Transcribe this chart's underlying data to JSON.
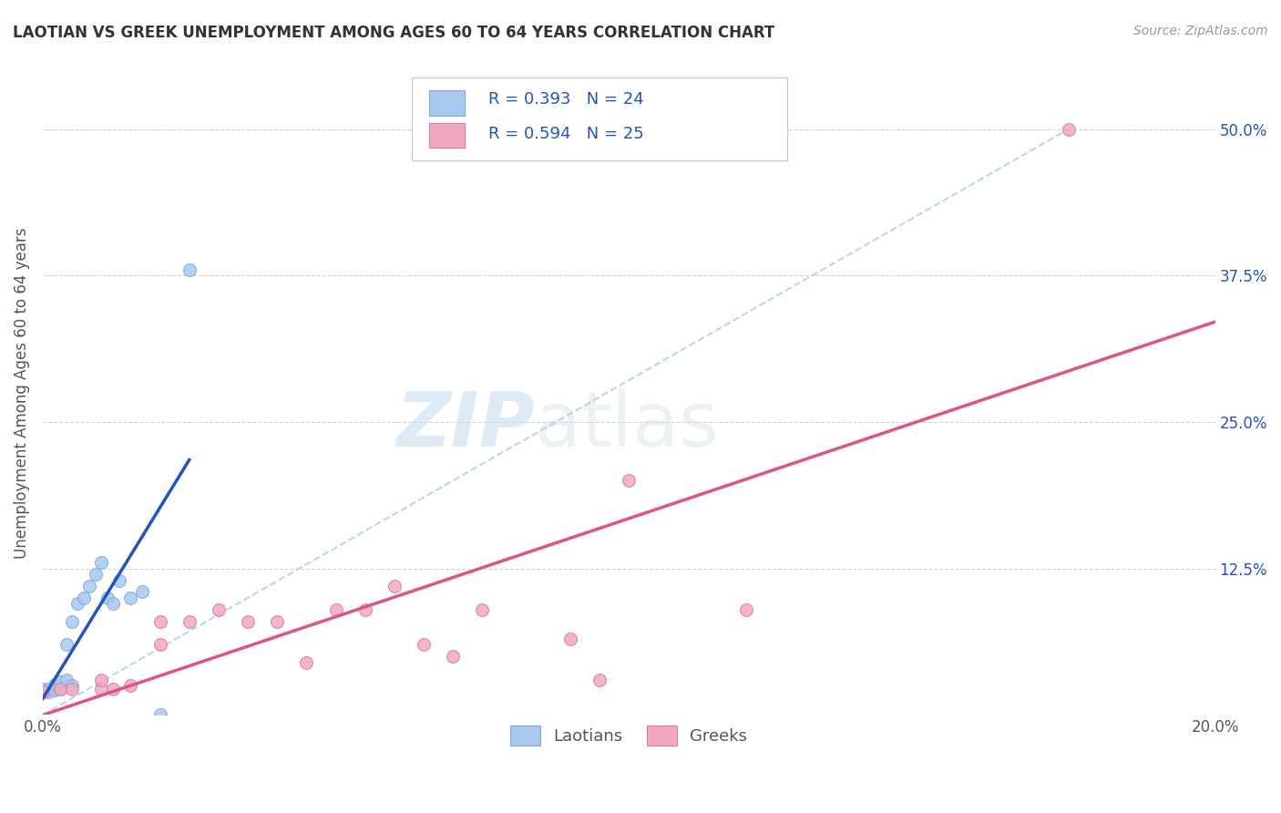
{
  "title": "LAOTIAN VS GREEK UNEMPLOYMENT AMONG AGES 60 TO 64 YEARS CORRELATION CHART",
  "source": "Source: ZipAtlas.com",
  "ylabel": "Unemployment Among Ages 60 to 64 years",
  "xlim": [
    0.0,
    0.2
  ],
  "ylim": [
    0.0,
    0.55
  ],
  "x_ticks": [
    0.0,
    0.05,
    0.1,
    0.15,
    0.2
  ],
  "y_ticks": [
    0.0,
    0.125,
    0.25,
    0.375,
    0.5
  ],
  "y_tick_labels": [
    "",
    "12.5%",
    "25.0%",
    "37.5%",
    "50.0%"
  ],
  "grid_color": "#c8c8c8",
  "background_color": "#ffffff",
  "watermark_zip": "ZIP",
  "watermark_atlas": "atlas",
  "laotian_color": "#a8c8f0",
  "laotian_edge_color": "#7aaadd",
  "greek_color": "#f0a8c0",
  "greek_edge_color": "#dd7aaa",
  "laotian_line_color": "#2255bb",
  "greek_line_color": "#dd5588",
  "dashed_line_color": "#aaccee",
  "legend_r1": "R = 0.393",
  "legend_n1": "N = 24",
  "legend_r2": "R = 0.594",
  "legend_n2": "N = 25",
  "legend_text_color": "#2255bb",
  "laotian_x": [
    0.0,
    0.0,
    0.001,
    0.001,
    0.002,
    0.002,
    0.003,
    0.003,
    0.004,
    0.004,
    0.005,
    0.005,
    0.006,
    0.007,
    0.008,
    0.009,
    0.01,
    0.011,
    0.012,
    0.013,
    0.015,
    0.017,
    0.02,
    0.025
  ],
  "laotian_y": [
    0.02,
    0.022,
    0.02,
    0.022,
    0.021,
    0.026,
    0.022,
    0.028,
    0.03,
    0.06,
    0.025,
    0.08,
    0.095,
    0.1,
    0.11,
    0.12,
    0.13,
    0.1,
    0.095,
    0.115,
    0.1,
    0.105,
    0.0,
    0.38
  ],
  "greek_x": [
    0.0,
    0.003,
    0.005,
    0.01,
    0.01,
    0.012,
    0.015,
    0.02,
    0.02,
    0.025,
    0.03,
    0.035,
    0.04,
    0.045,
    0.05,
    0.055,
    0.06,
    0.065,
    0.07,
    0.075,
    0.09,
    0.095,
    0.1,
    0.12,
    0.175
  ],
  "greek_y": [
    0.02,
    0.022,
    0.022,
    0.022,
    0.03,
    0.022,
    0.025,
    0.06,
    0.08,
    0.08,
    0.09,
    0.08,
    0.08,
    0.045,
    0.09,
    0.09,
    0.11,
    0.06,
    0.05,
    0.09,
    0.065,
    0.03,
    0.2,
    0.09,
    0.5
  ],
  "marker_size": 100
}
